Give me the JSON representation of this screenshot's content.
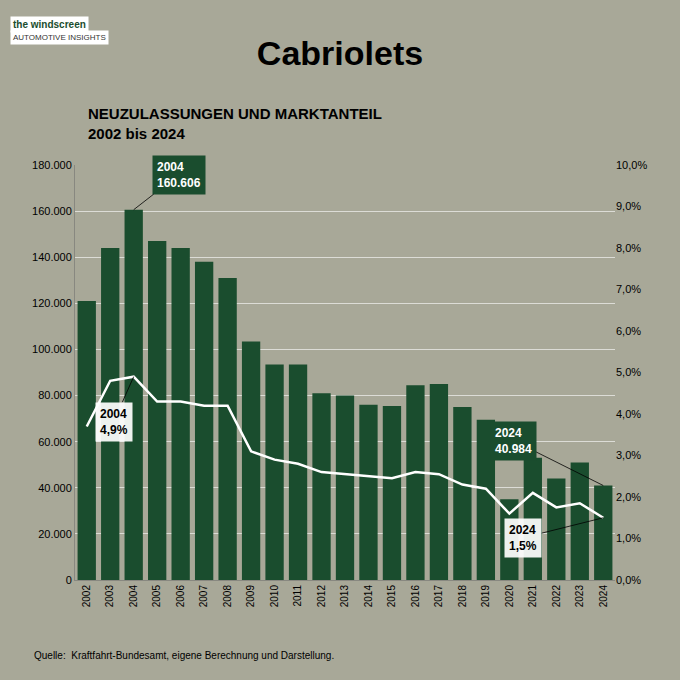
{
  "chart_data": {
    "type": "bar",
    "title": "Cabriolets",
    "subtitle": [
      "NEUZULASSUNGEN UND MARKTANTEIL",
      "2002 bis 2024"
    ],
    "categories": [
      "2002",
      "2003",
      "2004",
      "2005",
      "2006",
      "2007",
      "2008",
      "2009",
      "2010",
      "2011",
      "2012",
      "2013",
      "2014",
      "2015",
      "2016",
      "2017",
      "2018",
      "2019",
      "2020",
      "2021",
      "2022",
      "2023",
      "2024"
    ],
    "series": [
      {
        "type": "bar",
        "color": "#1a4d2e",
        "values": [
          121000,
          144000,
          160606,
          147000,
          144000,
          138000,
          131000,
          103500,
          93500,
          93500,
          81000,
          80000,
          76000,
          75500,
          84500,
          85000,
          75000,
          69500,
          35000,
          53000,
          44000,
          51000,
          40984
        ]
      },
      {
        "type": "line",
        "color": "#ffffff",
        "axis": "y2",
        "values": [
          3.7,
          4.8,
          4.9,
          4.3,
          4.3,
          4.2,
          4.2,
          3.1,
          2.9,
          2.8,
          2.6,
          2.55,
          2.5,
          2.45,
          2.6,
          2.55,
          2.3,
          2.2,
          1.6,
          2.1,
          1.75,
          1.85,
          1.5
        ]
      }
    ],
    "ylim": [
      0,
      180000
    ],
    "yticks": [
      0,
      {
        "value": 20000,
        "label": "20.000"
      },
      {
        "value": 40000,
        "label": "40.000"
      },
      {
        "value": 60000,
        "label": "60.000"
      },
      {
        "value": 80000,
        "label": "80.000"
      },
      {
        "value": 100000,
        "label": "100.000"
      },
      {
        "value": 120000,
        "label": "120.000"
      },
      {
        "value": 140000,
        "label": "140.000"
      },
      {
        "value": 160000,
        "label": "160.000"
      },
      {
        "value": 180000,
        "label": "180.000"
      }
    ],
    "y2lim": [
      0,
      10.0
    ],
    "y2ticks": [
      {
        "value": 0,
        "label": "0,0%"
      },
      {
        "value": 1,
        "label": "1,0%"
      },
      {
        "value": 2,
        "label": "2,0%"
      },
      {
        "value": 3,
        "label": "3,0%"
      },
      {
        "value": 4,
        "label": "4,0%"
      },
      {
        "value": 5,
        "label": "5,0%"
      },
      {
        "value": 6,
        "label": "6,0%"
      },
      {
        "value": 7,
        "label": "7,0%"
      },
      {
        "value": 8,
        "label": "8,0%"
      },
      {
        "value": 9,
        "label": "9,0%"
      },
      {
        "value": 10,
        "label": "10,0%"
      }
    ],
    "grid": true,
    "annotations": [
      {
        "text": "2004\n160.606",
        "x": "2004",
        "y": 160606
      },
      {
        "text": "2004\n4,9%",
        "x": "2004",
        "y": 4.9,
        "axis": "y2"
      },
      {
        "text": "2024\n40.984",
        "x": "2024",
        "y": 40984
      },
      {
        "text": "2024\n1,5%",
        "x": "2024",
        "y": 1.5,
        "axis": "y2"
      },
      {
        "text": "Quelle:  Kraftfahrt-Bundesamt, eigene Berechnung und Darstellung."
      },
      {
        "text": "the windscreen"
      },
      {
        "text": "AUTOMOTIVE INSIGHTS"
      }
    ]
  }
}
